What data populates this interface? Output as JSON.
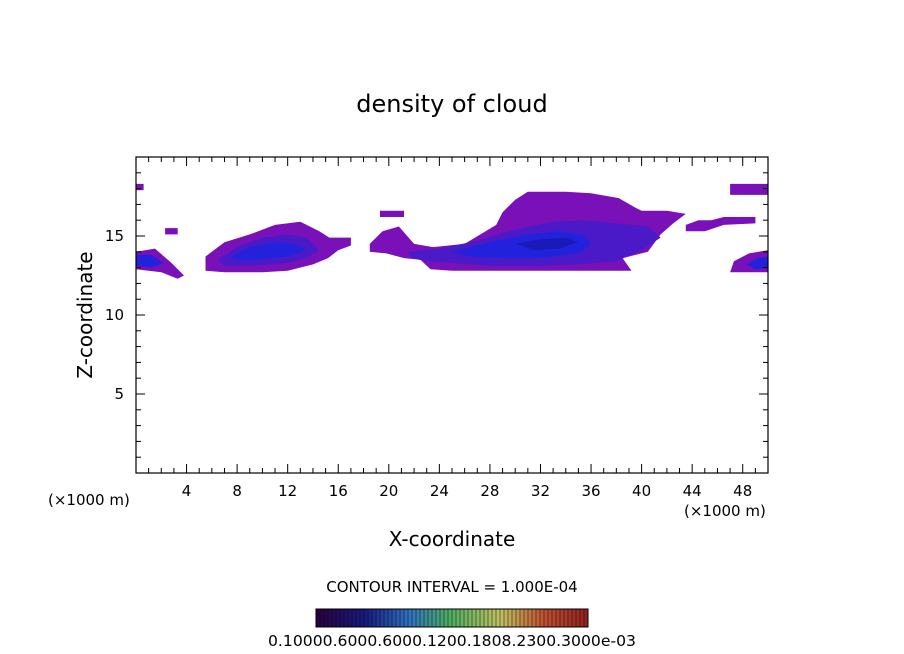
{
  "chart_data": {
    "type": "heatmap",
    "title": "density of cloud",
    "xlabel": "X-coordinate",
    "ylabel": "Z-coordinate",
    "x_unit_left": "(×1000 m)",
    "x_unit_right": "(×1000 m)",
    "xlim": [
      0,
      50
    ],
    "ylim": [
      0,
      20
    ],
    "x_ticks": [
      4,
      8,
      12,
      16,
      20,
      24,
      28,
      32,
      36,
      40,
      44,
      48
    ],
    "y_ticks": [
      5,
      10,
      15
    ],
    "contour_interval": "CONTOUR INTERVAL = 1.000E-04",
    "colorbar_labels": "0.10000e-05 0.6000e-04 0.12000e-03 0.18000e-03 0.24000e-03 0.30000e-03",
    "colorbar_label_overlap": "0.10000.6000.6000.1200.1808.2300.3000e-03",
    "colors": {
      "outer": "#7a10b8",
      "mid": "#4a19c8",
      "core": "#2222dd",
      "deep": "#1a1ab8"
    },
    "cloud_regions": [
      {
        "name": "left-edge",
        "level": "outer",
        "polygon": [
          [
            0,
            14.0
          ],
          [
            1.5,
            14.2
          ],
          [
            2.8,
            13.3
          ],
          [
            3.8,
            12.5
          ],
          [
            3.3,
            12.3
          ],
          [
            2,
            12.7
          ],
          [
            0,
            12.9
          ]
        ]
      },
      {
        "name": "left-edge-core",
        "level": "core",
        "polygon": [
          [
            0,
            13.8
          ],
          [
            1.2,
            13.8
          ],
          [
            2.2,
            13.3
          ],
          [
            1.2,
            13.0
          ],
          [
            0,
            13.1
          ]
        ]
      },
      {
        "name": "left-top-speck",
        "level": "outer",
        "polygon": [
          [
            0,
            18.3
          ],
          [
            0.6,
            18.3
          ],
          [
            0.6,
            17.9
          ],
          [
            0,
            17.9
          ]
        ]
      },
      {
        "name": "small-speck-2.5",
        "level": "outer",
        "polygon": [
          [
            2.3,
            15.5
          ],
          [
            3.3,
            15.5
          ],
          [
            3.3,
            15.1
          ],
          [
            2.3,
            15.1
          ]
        ]
      },
      {
        "name": "cloud-8-16",
        "level": "outer",
        "polygon": [
          [
            5.5,
            13.7
          ],
          [
            7,
            14.6
          ],
          [
            9,
            15.1
          ],
          [
            11,
            15.7
          ],
          [
            13,
            15.9
          ],
          [
            14.5,
            15.3
          ],
          [
            15.3,
            14.9
          ],
          [
            17,
            14.9
          ],
          [
            17,
            14.4
          ],
          [
            16,
            14.1
          ],
          [
            15.2,
            13.6
          ],
          [
            14,
            13.2
          ],
          [
            12,
            12.8
          ],
          [
            10,
            12.7
          ],
          [
            7,
            12.7
          ],
          [
            5.5,
            12.8
          ]
        ]
      },
      {
        "name": "cloud-8-16-mid",
        "level": "mid",
        "polygon": [
          [
            6.5,
            13.5
          ],
          [
            8,
            14.3
          ],
          [
            10,
            14.9
          ],
          [
            12,
            15.1
          ],
          [
            13.5,
            14.9
          ],
          [
            14.5,
            14.1
          ],
          [
            13.5,
            13.6
          ],
          [
            12,
            13.3
          ],
          [
            9,
            13.1
          ],
          [
            7,
            13.1
          ]
        ]
      },
      {
        "name": "cloud-8-16-core",
        "level": "core",
        "polygon": [
          [
            7.5,
            13.7
          ],
          [
            9,
            14.3
          ],
          [
            11,
            14.6
          ],
          [
            12.5,
            14.5
          ],
          [
            13.5,
            14.1
          ],
          [
            12,
            13.7
          ],
          [
            9.5,
            13.5
          ],
          [
            8,
            13.5
          ]
        ]
      },
      {
        "name": "speck-19",
        "level": "outer",
        "polygon": [
          [
            19.3,
            16.6
          ],
          [
            21.2,
            16.6
          ],
          [
            21.2,
            16.2
          ],
          [
            19.3,
            16.2
          ]
        ]
      },
      {
        "name": "cloud-20-40",
        "level": "outer",
        "polygon": [
          [
            18.5,
            14.5
          ],
          [
            19.5,
            15.3
          ],
          [
            20.8,
            15.6
          ],
          [
            22,
            14.5
          ],
          [
            23.5,
            14.3
          ],
          [
            26,
            14.5
          ],
          [
            28.5,
            15.7
          ],
          [
            29,
            16.5
          ],
          [
            30,
            17.3
          ],
          [
            31,
            17.8
          ],
          [
            34,
            17.8
          ],
          [
            36,
            17.7
          ],
          [
            38.2,
            17.4
          ],
          [
            39.5,
            16.8
          ],
          [
            40,
            16.6
          ],
          [
            42,
            16.6
          ],
          [
            43.5,
            16.4
          ],
          [
            42.5,
            15.8
          ],
          [
            41.5,
            15.1
          ],
          [
            40.5,
            14.0
          ],
          [
            38.5,
            13.6
          ],
          [
            39.2,
            12.8
          ],
          [
            33,
            12.8
          ],
          [
            30,
            12.8
          ],
          [
            27,
            12.8
          ],
          [
            25,
            12.8
          ],
          [
            23.3,
            12.9
          ],
          [
            22.5,
            13.5
          ],
          [
            21.2,
            13.6
          ],
          [
            19.8,
            13.9
          ],
          [
            18.5,
            14.0
          ]
        ]
      },
      {
        "name": "cloud-20-40-mid",
        "level": "mid",
        "polygon": [
          [
            21.5,
            14.0
          ],
          [
            24,
            14.2
          ],
          [
            27,
            14.7
          ],
          [
            30,
            15.4
          ],
          [
            33,
            15.9
          ],
          [
            35.5,
            16.0
          ],
          [
            38,
            15.8
          ],
          [
            40.5,
            15.6
          ],
          [
            41.5,
            14.9
          ],
          [
            40,
            14.1
          ],
          [
            38,
            13.4
          ],
          [
            35,
            13.2
          ],
          [
            32,
            13.1
          ],
          [
            28,
            13.1
          ],
          [
            25,
            13.3
          ],
          [
            23,
            13.4
          ],
          [
            21.8,
            13.6
          ]
        ]
      },
      {
        "name": "cloud-20-40-core",
        "level": "core",
        "polygon": [
          [
            25,
            14.0
          ],
          [
            28,
            14.6
          ],
          [
            31,
            15.1
          ],
          [
            33.5,
            15.3
          ],
          [
            35.5,
            15.0
          ],
          [
            36,
            14.5
          ],
          [
            35,
            13.9
          ],
          [
            32,
            13.6
          ],
          [
            29,
            13.6
          ],
          [
            26.5,
            13.7
          ]
        ]
      },
      {
        "name": "cloud-20-40-deep",
        "level": "deep",
        "polygon": [
          [
            30,
            14.5
          ],
          [
            32,
            14.8
          ],
          [
            34,
            14.9
          ],
          [
            35,
            14.6
          ],
          [
            33.5,
            14.2
          ],
          [
            31.5,
            14.1
          ]
        ]
      },
      {
        "name": "right-upper-band",
        "level": "outer",
        "polygon": [
          [
            43.5,
            15.7
          ],
          [
            44.5,
            16.0
          ],
          [
            45.5,
            16.0
          ],
          [
            46.5,
            16.2
          ],
          [
            49,
            16.2
          ],
          [
            49,
            15.8
          ],
          [
            46.5,
            15.7
          ],
          [
            45,
            15.3
          ],
          [
            43.5,
            15.3
          ]
        ]
      },
      {
        "name": "right-top-speck",
        "level": "outer",
        "polygon": [
          [
            47,
            18.3
          ],
          [
            50,
            18.3
          ],
          [
            50,
            17.6
          ],
          [
            47,
            17.6
          ]
        ]
      },
      {
        "name": "right-edge",
        "level": "outer",
        "polygon": [
          [
            47,
            12.7
          ],
          [
            47.3,
            13.4
          ],
          [
            48.5,
            13.9
          ],
          [
            50,
            14.1
          ],
          [
            50,
            12.7
          ]
        ]
      },
      {
        "name": "right-edge-core",
        "level": "core",
        "polygon": [
          [
            48.3,
            13.2
          ],
          [
            49.2,
            13.6
          ],
          [
            50,
            13.7
          ],
          [
            50,
            13.0
          ],
          [
            49,
            12.9
          ]
        ]
      }
    ]
  }
}
